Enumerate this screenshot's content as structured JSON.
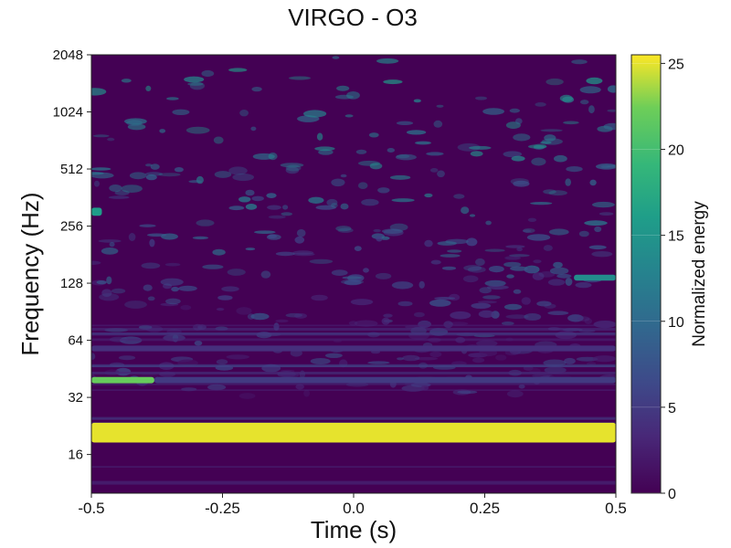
{
  "chart_data": {
    "type": "heatmap",
    "title": "VIRGO - O3",
    "xlabel": "Time (s)",
    "ylabel": "Frequency (Hz)",
    "xlim": [
      -0.5,
      0.5
    ],
    "ylim": [
      10,
      2048
    ],
    "y_scale": "log2",
    "x_ticks": [
      {
        "value": -0.5,
        "label": "-0.5"
      },
      {
        "value": -0.25,
        "label": "-0.25"
      },
      {
        "value": 0,
        "label": "0.0"
      },
      {
        "value": 0.25,
        "label": "0.25"
      },
      {
        "value": 0.5,
        "label": "0.5"
      }
    ],
    "y_ticks": [
      {
        "value": 16,
        "label": "16"
      },
      {
        "value": 32,
        "label": "32"
      },
      {
        "value": 64,
        "label": "64"
      },
      {
        "value": 128,
        "label": "128"
      },
      {
        "value": 256,
        "label": "256"
      },
      {
        "value": 512,
        "label": "512"
      },
      {
        "value": 1024,
        "label": "1024"
      },
      {
        "value": 2048,
        "label": "2048"
      }
    ],
    "colorbar": {
      "label": "Normalized energy",
      "range": [
        0,
        25.5
      ],
      "colormap": "viridis",
      "ticks": [
        {
          "value": 0,
          "label": "0"
        },
        {
          "value": 5,
          "label": "5"
        },
        {
          "value": 10,
          "label": "10"
        },
        {
          "value": 15,
          "label": "15"
        },
        {
          "value": 20,
          "label": "20"
        },
        {
          "value": 25,
          "label": "25"
        }
      ]
    },
    "features": [
      {
        "t_start": -0.5,
        "t_end": 0.5,
        "f_low": 18.5,
        "f_high": 23.5,
        "energy": 25
      },
      {
        "t_start": -0.5,
        "t_end": -0.38,
        "f_low": 38,
        "f_high": 41,
        "energy": 22
      },
      {
        "t_start": -0.38,
        "t_end": 0.5,
        "f_low": 38,
        "f_high": 41,
        "energy": 5
      },
      {
        "t_start": -0.5,
        "t_end": 0.5,
        "f_low": 56,
        "f_high": 60,
        "energy": 4
      },
      {
        "t_start": 0.42,
        "t_end": 0.5,
        "f_low": 132,
        "f_high": 142,
        "energy": 14
      },
      {
        "t_start": -0.5,
        "t_end": -0.48,
        "f_low": 290,
        "f_high": 320,
        "energy": 16
      }
    ]
  }
}
